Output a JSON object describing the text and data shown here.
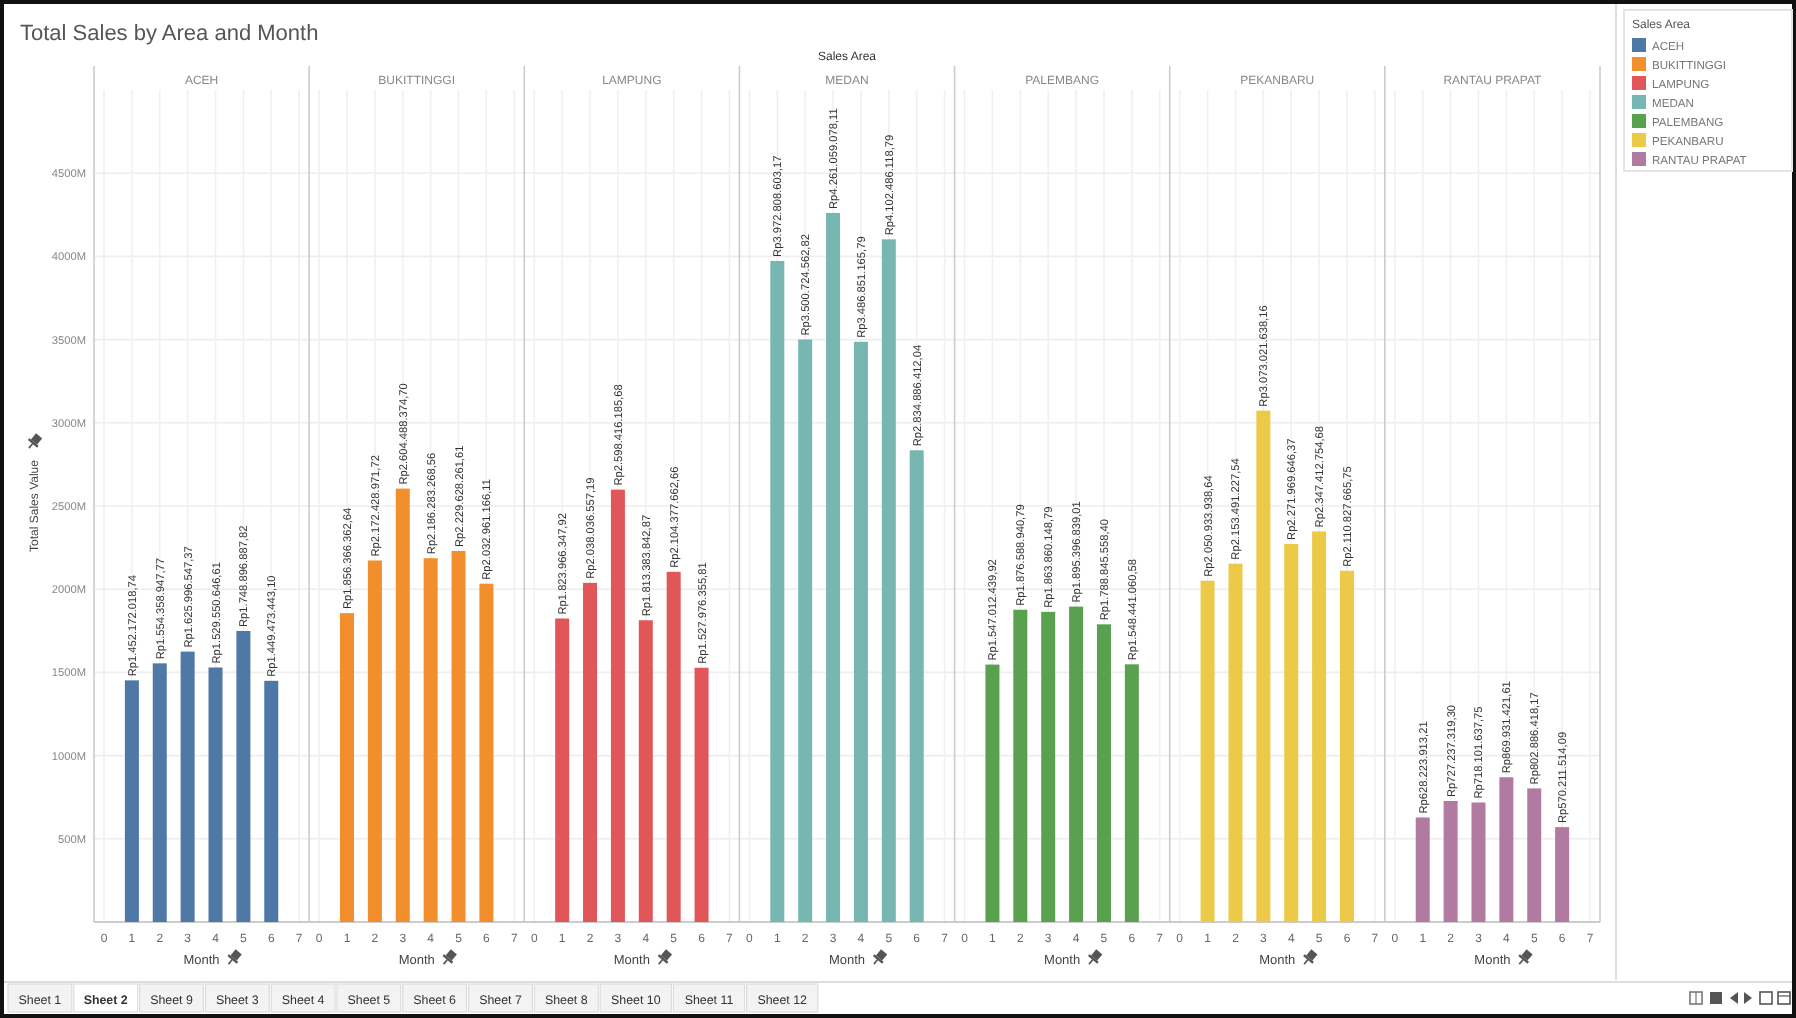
{
  "chart_data": [
    {
      "type": "bar",
      "title": "ACEH",
      "ylabel": "Total Sales Value",
      "xlabel": "Month",
      "legend": "right",
      "legend_title": "Sales Area",
      "grid": true,
      "annotations": [
        "Total Sales by Area and Month",
        "Sales Area",
        "Sheet 1",
        "Sheet 2",
        "Sheet 9",
        "Sheet 3",
        "Sheet 4",
        "Sheet 5",
        "Sheet 6",
        "Sheet 7",
        "Sheet 8",
        "Sheet 10",
        "Sheet 11",
        "Sheet 12"
      ],
      "x": [
        1,
        2,
        3,
        4,
        5,
        6
      ],
      "xlim": [
        0,
        7
      ],
      "xticks": [
        0,
        1,
        2,
        3,
        4,
        5,
        6,
        {
          "value": 7,
          "label": "7"
        }
      ],
      "ylim": [
        0,
        5000
      ],
      "yticks": [
        {
          "value": 500,
          "label": "500M"
        },
        {
          "value": 1000,
          "label": "1000M"
        },
        {
          "value": 1500,
          "label": "1500M"
        },
        {
          "value": 2000,
          "label": "2000M"
        },
        {
          "value": 2500,
          "label": "2500M"
        },
        {
          "value": 3000,
          "label": "3000M"
        },
        {
          "value": 3500,
          "label": "3500M"
        },
        {
          "value": 4000,
          "label": "4000M"
        },
        {
          "value": 4500,
          "label": "4500M"
        }
      ],
      "series": [
        {
          "name": "ACEH",
          "color": "#4e79a7",
          "values": [
            1452.17,
            1554.36,
            1625.0,
            1529.55,
            1748.9,
            1449.47
          ],
          "value_labels": [
            "Rp1.452.172.018,74",
            "Rp1.554.358.947,77",
            "Rp1.625.996.547,37",
            "Rp1.529.550.646,61",
            "Rp1.748.896.887,82",
            "Rp1.449.473.443,10"
          ]
        }
      ]
    },
    {
      "type": "bar",
      "title": "BUKITTINGGI",
      "xlabel": "Month",
      "grid": true,
      "tick_labels": "x",
      "x": [
        1,
        2,
        3,
        4,
        5,
        6
      ],
      "xlim": [
        0,
        7
      ],
      "xticks": [
        0,
        1,
        2,
        3,
        4,
        5,
        6,
        7
      ],
      "ylim": [
        0,
        5000
      ],
      "series": [
        {
          "name": "BUKITTINGGI",
          "color": "#f28e2b",
          "values": [
            1856.37,
            2172.43,
            2604.49,
            2186.28,
            2229.63,
            2032.96
          ],
          "value_labels": [
            "Rp1.856.366.362,64",
            "Rp2.172.428.971,72",
            "Rp2.604.488.374,70",
            "Rp2.186.283.268,56",
            "Rp2.229.628.261,61",
            "Rp2.032.961.166,11"
          ]
        }
      ]
    },
    {
      "type": "bar",
      "title": "LAMPUNG",
      "xlabel": "Month",
      "grid": true,
      "tick_labels": "x",
      "x": [
        1,
        2,
        3,
        4,
        5,
        6
      ],
      "xlim": [
        0,
        7
      ],
      "xticks": [
        0,
        1,
        2,
        3,
        4,
        5,
        6,
        7
      ],
      "ylim": [
        0,
        5000
      ],
      "series": [
        {
          "name": "LAMPUNG",
          "color": "#e15759",
          "values": [
            1823.97,
            2038.04,
            2598.42,
            1813.38,
            2104.38,
            1527.98
          ],
          "value_labels": [
            "Rp1.823.966.347,92",
            "Rp2.038.036.557,19",
            "Rp2.598.416.185,68",
            "Rp1.813.383.842,87",
            "Rp2.104.377.662,66",
            "Rp1.527.976.355,81"
          ]
        }
      ]
    },
    {
      "type": "bar",
      "title": "MEDAN",
      "xlabel": "Month",
      "grid": true,
      "tick_labels": "x",
      "x": [
        1,
        2,
        3,
        4,
        5,
        6
      ],
      "xlim": [
        0,
        7
      ],
      "xticks": [
        0,
        1,
        2,
        3,
        4,
        5,
        6,
        7
      ],
      "ylim": [
        0,
        5000
      ],
      "series": [
        {
          "name": "MEDAN",
          "color": "#76b7b2",
          "values": [
            3972.81,
            3500.72,
            4261.06,
            3486.85,
            4102.49,
            2834.89
          ],
          "value_labels": [
            "Rp3.972.808.603,17",
            "Rp3.500.724.562,82",
            "Rp4.261.059.078,11",
            "Rp3.486.851.165,79",
            "Rp4.102.486.118,79",
            "Rp2.834.886.412,04"
          ]
        }
      ]
    },
    {
      "type": "bar",
      "title": "PALEMBANG",
      "xlabel": "Month",
      "grid": true,
      "tick_labels": "x",
      "x": [
        1,
        2,
        3,
        4,
        5,
        6
      ],
      "xlim": [
        0,
        7
      ],
      "xticks": [
        0,
        1,
        2,
        3,
        4,
        5,
        6,
        7
      ],
      "ylim": [
        0,
        5000
      ],
      "series": [
        {
          "name": "PALEMBANG",
          "color": "#59a14f",
          "values": [
            1547.01,
            1876.59,
            1863.86,
            1895.4,
            1788.85,
            1548.44
          ],
          "value_labels": [
            "Rp1.547.012.439,92",
            "Rp1.876.588.940,79",
            "Rp1.863.860.148,79",
            "Rp1.895.396.839,01",
            "Rp1.788.845.558,40",
            "Rp1.548.441.060,58"
          ]
        }
      ]
    },
    {
      "type": "bar",
      "title": "PEKANBARU",
      "xlabel": "Month",
      "grid": true,
      "tick_labels": "x",
      "x": [
        1,
        2,
        3,
        4,
        5,
        6
      ],
      "xlim": [
        0,
        7
      ],
      "xticks": [
        0,
        1,
        2,
        3,
        4,
        5,
        6,
        7
      ],
      "ylim": [
        0,
        5000
      ],
      "series": [
        {
          "name": "PEKANBARU",
          "color": "#edc948",
          "values": [
            2050.93,
            2153.49,
            3073.02,
            2271.97,
            2347.41,
            2110.83
          ],
          "value_labels": [
            "Rp2.050.933.938,64",
            "Rp2.153.491.227,54",
            "Rp3.073.021.638,16",
            "Rp2.271.969.646,37",
            "Rp2.347.412.754,68",
            "Rp2.110.827.665,75"
          ]
        }
      ]
    },
    {
      "type": "bar",
      "title": "RANTAU PRAPAT",
      "xlabel": "Month",
      "grid": true,
      "tick_labels": "x",
      "x": [
        1,
        2,
        3,
        4,
        5,
        6
      ],
      "xlim": [
        0,
        7
      ],
      "xticks": [
        0,
        1,
        2,
        3,
        4,
        5,
        6,
        7
      ],
      "ylim": [
        0,
        5000
      ],
      "series": [
        {
          "name": "RANTAU PRAPAT",
          "color": "#b07aa1",
          "values": [
            628.22,
            727.24,
            718.1,
            869.93,
            802.89,
            570.21
          ],
          "value_labels": [
            "Rp628.223.913,21",
            "Rp727.237.319,30",
            "Rp718.101.637,75",
            "Rp869.931.421,61",
            "Rp802.886.418,17",
            "Rp570.211.514,09"
          ]
        }
      ]
    }
  ]
}
